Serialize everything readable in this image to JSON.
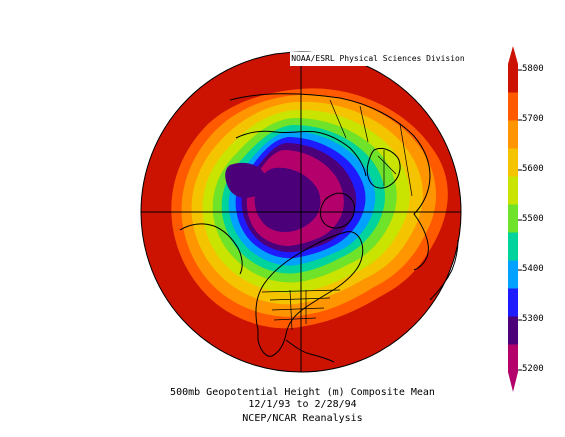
{
  "header": {
    "credit": "NOAA/ESRL Physical Sciences Division"
  },
  "caption": {
    "line1": "500mb Geopotential Height (m) Composite Mean",
    "line2": "12/1/93  to 2/28/94",
    "line3": "NCEP/NCAR Reanalysis"
  },
  "colorbar": {
    "min": 5200,
    "max": 5800,
    "ticks": [
      "5800",
      "5700",
      "5600",
      "5500",
      "5400",
      "5300",
      "5200"
    ],
    "colors": [
      "#b3006b",
      "#4b007a",
      "#1e1cff",
      "#00a1ff",
      "#00d39b",
      "#6fe22a",
      "#c8e400",
      "#f5c400",
      "#ff9500",
      "#ff5a00",
      "#cc1200"
    ]
  },
  "map": {
    "projection": "polar stereographic (north pole)",
    "field": "500mb geopotential height"
  }
}
